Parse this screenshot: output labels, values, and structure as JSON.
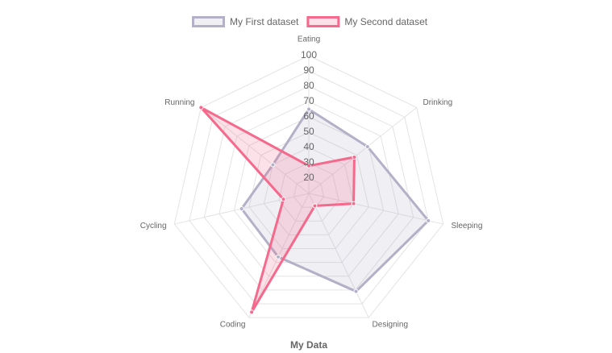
{
  "chart_data": {
    "type": "radar",
    "title": "My Data",
    "categories": [
      "Eating",
      "Drinking",
      "Sleeping",
      "Designing",
      "Coding",
      "Cycling",
      "Running"
    ],
    "series": [
      {
        "name": "My First dataset",
        "color": "#b3b0c8",
        "values": [
          65,
          59,
          90,
          81,
          56,
          55,
          40
        ]
      },
      {
        "name": "My Second dataset",
        "color": "#f5698c",
        "values": [
          28,
          48,
          40,
          19,
          96,
          27,
          100
        ]
      }
    ],
    "ylim": [
      10,
      100
    ],
    "yticks": [
      20,
      30,
      40,
      50,
      60,
      70,
      80,
      90,
      100
    ],
    "grid": true,
    "legend": "top"
  }
}
